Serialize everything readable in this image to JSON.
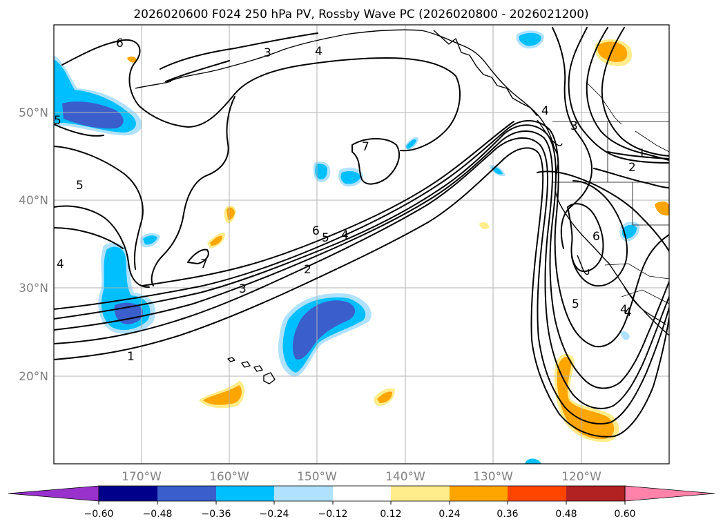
{
  "title": "2026020600 F024 250 hPa PV, Rossby Wave PC (2026020800 - 2026021200)",
  "map": {
    "lon_range": [
      -180,
      -110
    ],
    "lat_range": [
      10,
      60
    ],
    "lon_ticks": [
      {
        "lon": -170,
        "label": "170°W"
      },
      {
        "lon": -160,
        "label": "160°W"
      },
      {
        "lon": -150,
        "label": "150°W"
      },
      {
        "lon": -140,
        "label": "140°W"
      },
      {
        "lon": -130,
        "label": "130°W"
      },
      {
        "lon": -120,
        "label": "120°W"
      }
    ],
    "lat_ticks": [
      {
        "lat": 50,
        "label": "50°N"
      },
      {
        "lat": 40,
        "label": "40°N"
      },
      {
        "lat": 30,
        "label": "30°N"
      },
      {
        "lat": 20,
        "label": "20°N"
      }
    ]
  },
  "contour_labels": [
    "6",
    "3",
    "4",
    "5",
    "7",
    "6",
    "5",
    "4",
    "2",
    "3",
    "1",
    "4",
    "7",
    "4",
    "3",
    "1",
    "2",
    "6",
    "5",
    "4",
    "5",
    "4"
  ],
  "colorbar": {
    "colors": [
      "#9932cc",
      "#00008b",
      "#3a5fcd",
      "#00bfff",
      "#b0e2ff",
      "#ffffff",
      "#ffec8b",
      "#ffa500",
      "#ff4500",
      "#b22222",
      "#ff82ab"
    ],
    "ticks": [
      "−0.60",
      "−0.48",
      "−0.36",
      "−0.24",
      "−0.12",
      "0.12",
      "0.24",
      "0.36",
      "0.48",
      "0.60"
    ]
  },
  "shading_colors": {
    "light_blue": "#b0e2ff",
    "blue": "#00bfff",
    "royal_blue": "#3a5fcd",
    "light_yellow": "#ffec8b",
    "orange": "#ffa500"
  }
}
